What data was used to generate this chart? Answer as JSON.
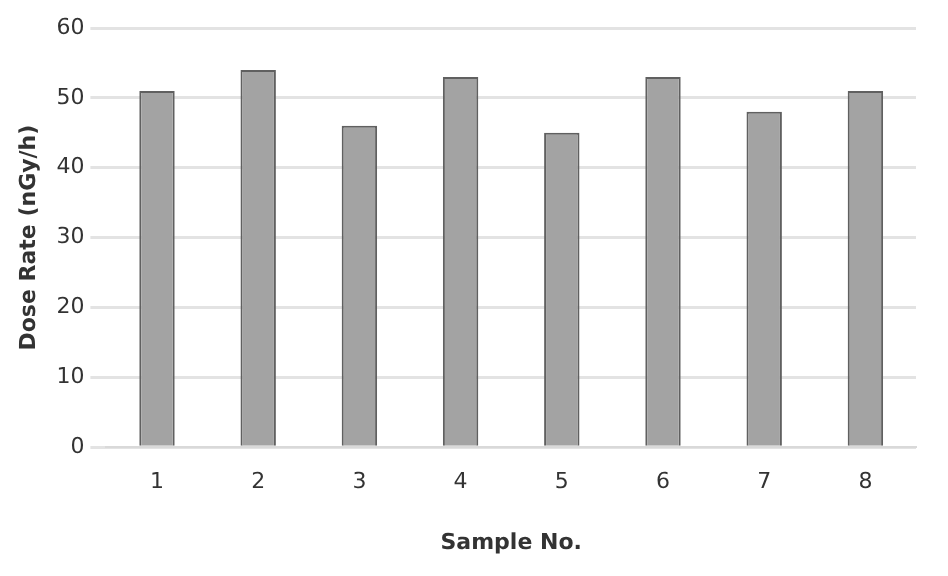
{
  "chart_data": {
    "type": "bar",
    "xlabel": "Sample No.",
    "ylabel": "Dose Rate (nGy/h)",
    "categories": [
      "1",
      "2",
      "3",
      "4",
      "5",
      "6",
      "7",
      "8"
    ],
    "values": [
      51,
      54,
      46,
      53,
      45,
      53,
      48,
      51
    ],
    "color": "#a3a3a3",
    "ylim": [
      0,
      60
    ],
    "yticks": [
      0,
      10,
      20,
      30,
      40,
      50,
      60
    ],
    "grid": "y"
  }
}
